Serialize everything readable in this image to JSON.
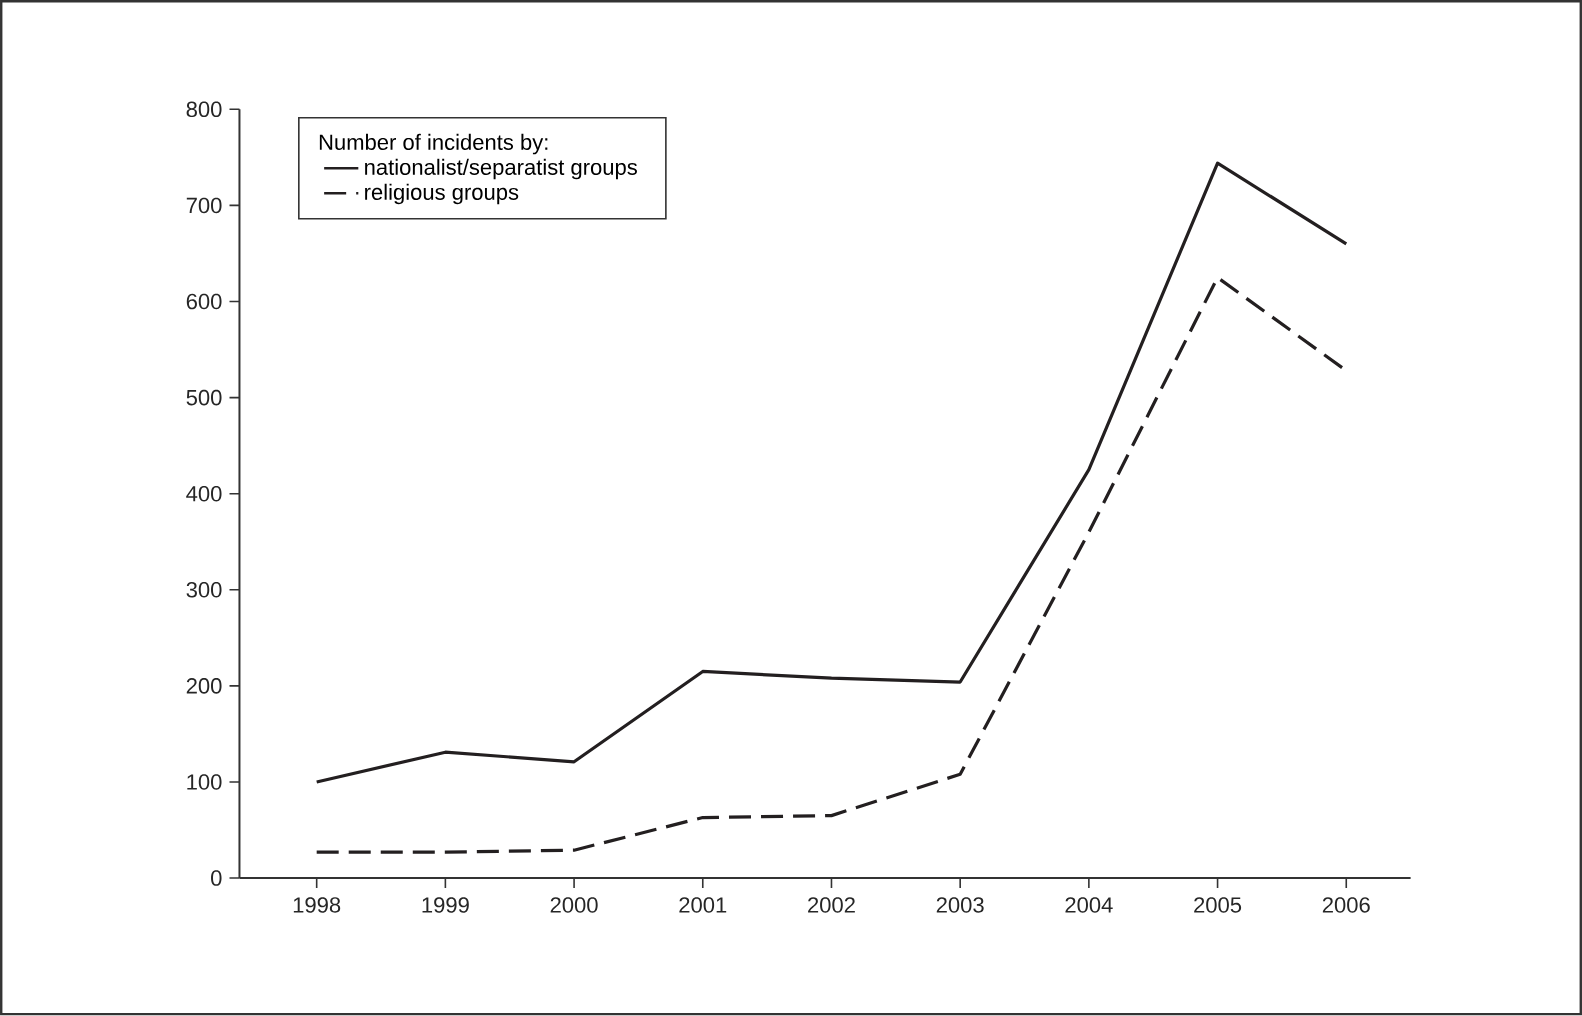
{
  "chart_data": {
    "type": "line",
    "legend_title": "Number of incidents by:",
    "x": [
      1998,
      1999,
      2000,
      2001,
      2002,
      2003,
      2004,
      2005,
      2006
    ],
    "series": [
      {
        "name": "nationalist/separatist groups",
        "color": "#231f20",
        "line_style": "solid",
        "values": [
          100,
          131,
          121,
          215,
          208,
          204,
          425,
          744,
          660
        ]
      },
      {
        "name": "religious groups",
        "color": "#231f20",
        "line_style": "dashed",
        "values": [
          27,
          27,
          29,
          63,
          65,
          108,
          360,
          625,
          528
        ]
      }
    ],
    "xlim": [
      1997.4,
      2006.5
    ],
    "ylim": [
      0,
      800
    ],
    "xticks": [
      1998,
      1999,
      2000,
      2001,
      2002,
      2003,
      2004,
      2005,
      2006
    ],
    "yticks": [
      0,
      100,
      200,
      300,
      400,
      500,
      600,
      700,
      800
    ],
    "legend": "top left",
    "grid": false,
    "marker": "none"
  }
}
